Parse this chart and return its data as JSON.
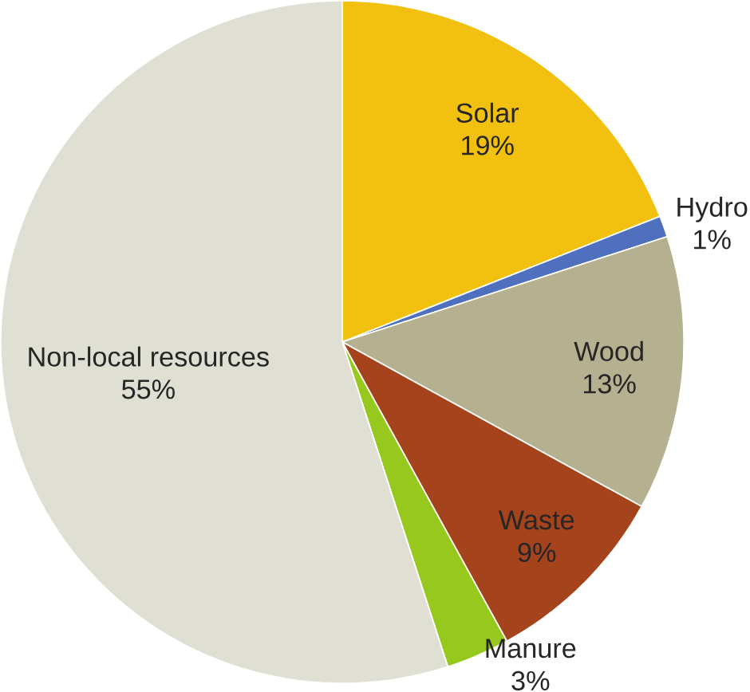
{
  "chart_data": {
    "type": "pie",
    "categories": [
      "Solar",
      "Hydro",
      "Wood",
      "Waste",
      "Manure",
      "Non-local resources"
    ],
    "values": [
      19,
      1,
      13,
      9,
      3,
      55
    ],
    "value_labels": [
      "19%",
      "1%",
      "13%",
      "9%",
      "3%",
      "55%"
    ],
    "colors": [
      "#f2c10f",
      "#4f6fbf",
      "#b5b08f",
      "#a5431c",
      "#96c81e",
      "#e0dfd3"
    ]
  }
}
